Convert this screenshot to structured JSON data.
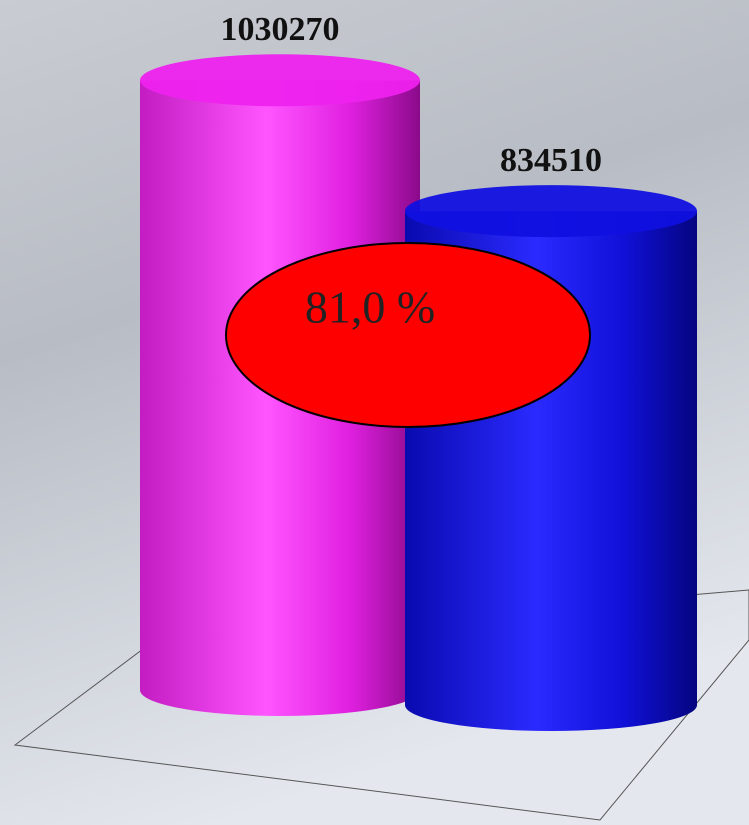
{
  "chart_data": {
    "type": "bar",
    "categories": [
      null,
      null
    ],
    "values": [
      1030270,
      834510
    ],
    "colors": [
      "#ee22ee",
      "#1010e0"
    ],
    "ylim": [
      0,
      1100000
    ],
    "annotation": "81,0 %"
  }
}
